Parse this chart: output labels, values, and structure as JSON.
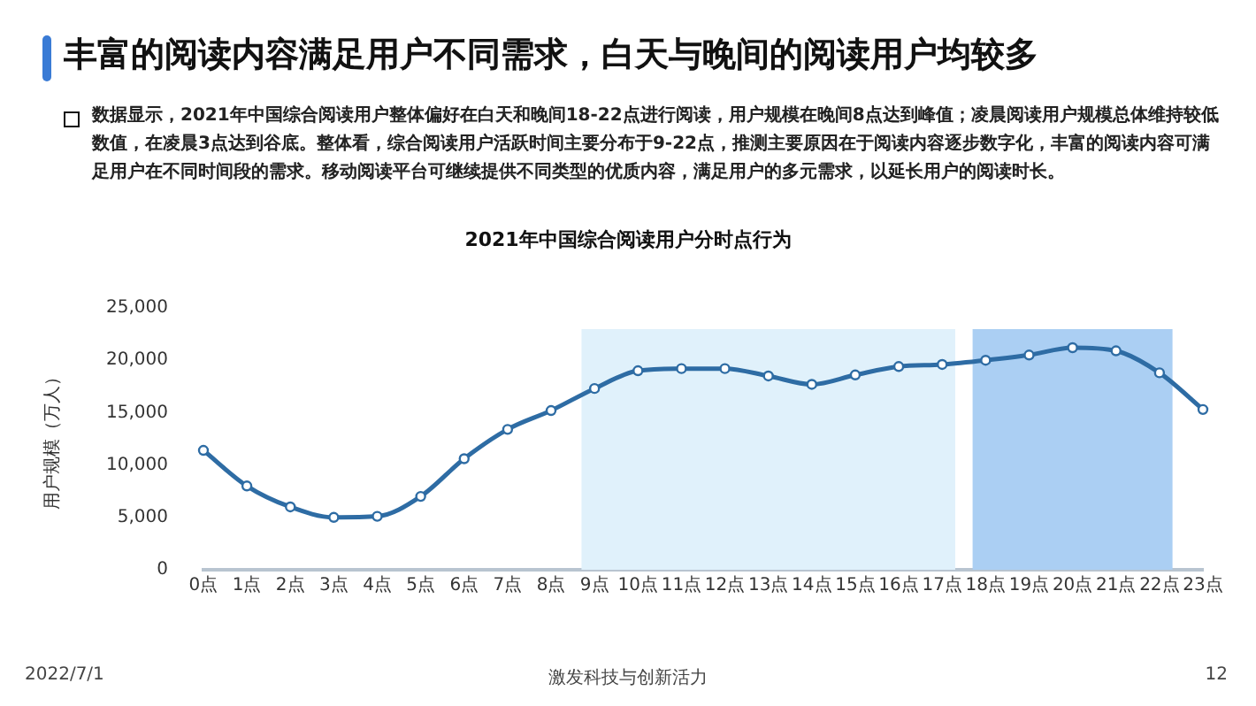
{
  "chart_data": {
    "type": "line",
    "title": "2021年中国综合阅读用户分时点行为",
    "ylabel": "用户规模（万人）",
    "annotations": [
      "丰富的阅读内容满足用户不同需求，白天与晚间的阅读用户均较多",
      "数据显示，2021年中国综合阅读用户整体偏好在白天和晚间18-22点进行阅读，用户规模在晚间8点达到峰值；凌晨阅读用户规模总体维持较低数值，在凌晨3点达到谷底。整体看，综合阅读用户活跃时间主要分布于9-22点，推测主要原因在于阅读内容逐步数字化，丰富的阅读内容可满足用户在不同时间段的需求。移动阅读平台可继续提供不同类型的优质内容，满足用户的多元需求，以延长用户的阅读时长。",
      "2022/7/1",
      "激发科技与创新活力",
      "12"
    ],
    "categories": [
      "0点",
      "1点",
      "2点",
      "3点",
      "4点",
      "5点",
      "6点",
      "7点",
      "8点",
      "9点",
      "10点",
      "11点",
      "12点",
      "13点",
      "14点",
      "15点",
      "16点",
      "17点",
      "18点",
      "19点",
      "20点",
      "21点",
      "22点",
      "23点"
    ],
    "series": [
      {
        "color": "#2e6ca4",
        "values": [
          11400,
          8000,
          6000,
          5000,
          5100,
          7000,
          10600,
          13400,
          15200,
          17300,
          19000,
          19200,
          19200,
          18500,
          17700,
          18600,
          19400,
          19600,
          20000,
          20500,
          21200,
          20900,
          18800,
          15300
        ]
      }
    ],
    "ylim": [
      0,
      25000
    ],
    "yticks": [
      {
        "value": 0,
        "label": "0"
      },
      {
        "value": 5000,
        "label": "5,000"
      },
      {
        "value": 10000,
        "label": "10,000"
      },
      {
        "value": 15000,
        "label": "15,000"
      },
      {
        "value": 20000,
        "label": "20,000"
      },
      {
        "value": 25000,
        "label": "25,000"
      }
    ],
    "bands": [
      {
        "axis": "x",
        "from": "9点",
        "to": "17点",
        "color": "#e0f1fb"
      },
      {
        "axis": "x",
        "from": "18点",
        "to": "22点",
        "color": "#abcff3"
      }
    ],
    "marker": "circle",
    "line_style": "solid",
    "grid": false,
    "legend": false
  }
}
